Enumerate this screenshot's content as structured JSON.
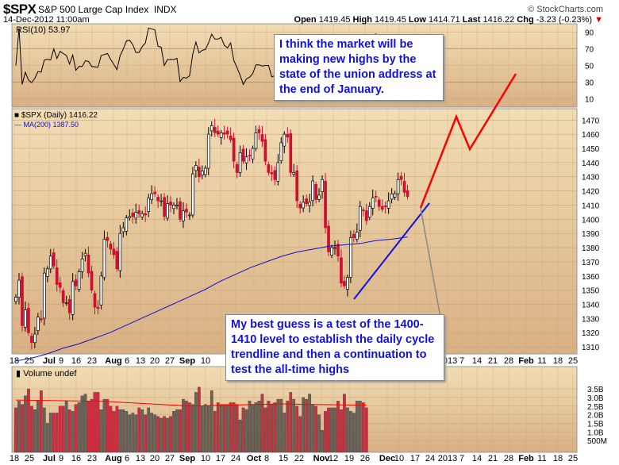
{
  "header": {
    "symbol": "$SPX",
    "name": "S&P 500 Large Cap Index",
    "exchange": "INDX",
    "datetime": "14-Dec-2012 11:00am",
    "brand": "© StockCharts.com",
    "open_label": "Open",
    "open": "1419.45",
    "high_label": "High",
    "high": "1419.45",
    "low_label": "Low",
    "low": "1414.71",
    "last_label": "Last",
    "last": "1416.22",
    "chg_label": "Chg",
    "chg": "-3.23 (-0.23%)",
    "chg_icon": "down-triangle-icon"
  },
  "colors": {
    "panel_top": "#f2ddb5",
    "panel_bottom": "#d8b083",
    "up_candle": "#000000",
    "down_candle": "#cc1030",
    "ma200": "#1010cc",
    "volume_up": "#6b6258",
    "volume_down": "#cc3040",
    "volume_ma": "#ff0000",
    "projection": "#ff0000",
    "trendline": "#1010e0"
  },
  "annotations": {
    "top_box": "I think the market will be making new highs by the state of the union address at the end of January.",
    "bottom_box": "My best guess is a test of the 1400-1410 level to establish the daily cycle trendline and then a continuation to test the all-time highs"
  },
  "chart_data": [
    {
      "panel": "rsi",
      "type": "line",
      "legend": "RSI(10) 53.97",
      "ylim": [
        0,
        100
      ],
      "yticks": [
        "90",
        "70",
        "50",
        "30",
        "10"
      ],
      "overbought": 70,
      "oversold": 30
    },
    {
      "panel": "price",
      "type": "candlestick",
      "legend_price": "$SPX (Daily) 1416.22",
      "legend_ma": "MA(200) 1387.50",
      "ylim": [
        1305,
        1478
      ],
      "yticks": [
        "1470",
        "1460",
        "1450",
        "1440",
        "1430",
        "1420",
        "1410",
        "1400",
        "1390",
        "1380",
        "1370",
        "1360",
        "1350",
        "1340",
        "1330",
        "1320",
        "1310"
      ],
      "weekly_closes": [
        {
          "week": "Jun 18",
          "closes": [
            1345,
            1357,
            1325,
            1336,
            1320
          ]
        },
        {
          "week": "Jun 25",
          "closes": [
            1313,
            1319,
            1331,
            1329,
            1362
          ]
        },
        {
          "week": "Jul 2",
          "closes": [
            1365,
            1374,
            1367,
            1354
          ]
        },
        {
          "week": "Jul 9",
          "closes": [
            1352,
            1341,
            1341,
            1334,
            1356
          ]
        },
        {
          "week": "Jul 16",
          "closes": [
            1353,
            1363,
            1372,
            1376,
            1362
          ]
        },
        {
          "week": "Jul 23",
          "closes": [
            1350,
            1338,
            1337,
            1360,
            1386
          ]
        },
        {
          "week": "Jul 30",
          "closes": [
            1385,
            1379,
            1375,
            1365,
            1390
          ]
        },
        {
          "week": "Aug 6",
          "closes": [
            1394,
            1401,
            1402,
            1402,
            1405
          ]
        },
        {
          "week": "Aug 13",
          "closes": [
            1404,
            1404,
            1403,
            1415,
            1418
          ]
        },
        {
          "week": "Aug 20",
          "closes": [
            1418,
            1413,
            1413,
            1402,
            1411
          ]
        },
        {
          "week": "Aug 27",
          "closes": [
            1410,
            1410,
            1410,
            1400,
            1406
          ]
        },
        {
          "week": "Sep 3",
          "closes": [
            1405,
            1403,
            1432,
            1438
          ]
        },
        {
          "week": "Sep 10",
          "closes": [
            1430,
            1434,
            1436,
            1460,
            1466
          ]
        },
        {
          "week": "Sep 17",
          "closes": [
            1461,
            1460,
            1461,
            1460,
            1460
          ]
        },
        {
          "week": "Sep 24",
          "closes": [
            1456,
            1441,
            1433,
            1447,
            1441
          ]
        },
        {
          "week": "Oct 1",
          "closes": [
            1444,
            1445,
            1450,
            1461,
            1461
          ]
        },
        {
          "week": "Oct 8",
          "closes": [
            1455,
            1441,
            1433,
            1432,
            1428
          ]
        },
        {
          "week": "Oct 15",
          "closes": [
            1440,
            1454,
            1460,
            1458,
            1433
          ]
        },
        {
          "week": "Oct 22",
          "closes": [
            1433,
            1413,
            1408,
            1412,
            1411
          ]
        },
        {
          "week": "Oct 31",
          "closes": [
            1412,
            1427,
            1414
          ]
        },
        {
          "week": "Nov 5",
          "closes": [
            1417,
            1428,
            1394,
            1377,
            1380
          ]
        },
        {
          "week": "Nov 12",
          "closes": [
            1380,
            1374,
            1355,
            1353,
            1359
          ]
        },
        {
          "week": "Nov 19",
          "closes": [
            1387,
            1387,
            1391,
            1409
          ]
        },
        {
          "week": "Nov 26",
          "closes": [
            1406,
            1399,
            1409,
            1415,
            1416
          ]
        },
        {
          "week": "Dec 3",
          "closes": [
            1409,
            1407,
            1409,
            1413,
            1418
          ]
        },
        {
          "week": "Dec 10",
          "closes": [
            1418,
            1428,
            1428,
            1419,
            1416
          ]
        }
      ],
      "ma200_weekly": [
        1300,
        1302,
        1305,
        1309,
        1312,
        1316,
        1320,
        1325,
        1330,
        1335,
        1340,
        1345,
        1350,
        1356,
        1361,
        1366,
        1370,
        1374,
        1377,
        1379,
        1381,
        1382,
        1383,
        1385,
        1386,
        1387.5
      ],
      "projection": [
        {
          "date": "Dec 14",
          "price": 1407
        },
        {
          "date": "Jan 2",
          "price": 1473
        },
        {
          "date": "Jan 9",
          "price": 1450
        },
        {
          "date": "Jan 29",
          "price": 1503
        }
      ],
      "trendline": [
        {
          "date": "Nov 16",
          "price": 1344
        },
        {
          "date": "Dec 18",
          "price": 1412
        }
      ]
    },
    {
      "panel": "volume",
      "type": "bar",
      "legend": "Volume undef",
      "ylim": [
        0,
        3.7
      ],
      "yticks": [
        "3.5B",
        "3.0B",
        "2.5B",
        "2.0B",
        "1.5B",
        "1.0B",
        "500M"
      ],
      "weekly_volume_billions": [
        [
          2.4,
          2.8,
          2.6,
          3.1,
          3.5
        ],
        [
          2.5,
          2.3,
          2.8,
          3.4,
          2.4
        ],
        [
          1.5,
          2.1,
          2.1,
          2.1
        ],
        [
          2.5,
          2.5,
          2.8,
          2.3,
          2.2
        ],
        [
          2.6,
          2.7,
          3.1,
          3.2,
          2.8
        ],
        [
          2.9,
          3.3,
          3.3,
          2.3,
          2.9
        ],
        [
          2.9,
          2.5,
          2.2,
          2.5,
          2.3
        ],
        [
          2.3,
          2.2,
          2.0,
          2.1,
          2.0
        ],
        [
          2.4,
          2.3,
          2.0,
          2.4,
          2.1
        ],
        [
          2.0,
          1.9,
          1.8,
          1.9,
          1.8
        ],
        [
          1.9,
          2.2,
          2.3,
          2.3
        ],
        [
          2.9,
          2.8,
          2.7,
          2.6,
          3.3
        ],
        [
          3.6,
          2.5,
          2.6,
          2.5,
          3.4
        ],
        [
          2.2,
          2.7,
          2.6,
          2.6,
          2.6
        ],
        [
          2.7,
          2.7,
          2.6,
          1.7,
          2.4
        ],
        [
          2.3,
          2.8,
          2.6,
          2.7,
          2.8
        ],
        [
          3.2,
          2.4,
          2.8,
          2.6,
          2.7
        ],
        [
          2.9,
          2.9,
          2.1,
          2.8,
          3.3
        ],
        [
          2.9,
          2.5,
          1.9,
          3.0,
          2.9
        ],
        [
          3.2,
          2.6,
          2.5,
          2.0
        ],
        [
          1.1,
          2.2,
          2.4,
          2.4
        ],
        [
          2.4,
          2.8,
          2.3,
          3.2,
          2.4
        ],
        [
          2.2,
          2.1,
          2.8,
          2.8
        ],
        [
          2.7,
          2.4
        ]
      ],
      "volume_ma": {
        "start": 2.85,
        "end": 2.55
      }
    },
    {
      "panel": "x-axis",
      "labels": [
        "18",
        "25",
        "Jul",
        "9",
        "16",
        "23",
        "Aug",
        "6",
        "13",
        "20",
        "27",
        "Sep",
        "10",
        "17",
        "24",
        "Oct",
        "8",
        "15",
        "22",
        "Nov",
        "12",
        "19",
        "26",
        "Dec",
        "10",
        "17",
        "24",
        "2013",
        "7",
        "14",
        "21",
        "28",
        "Feb",
        "11",
        "18",
        "25"
      ]
    }
  ]
}
